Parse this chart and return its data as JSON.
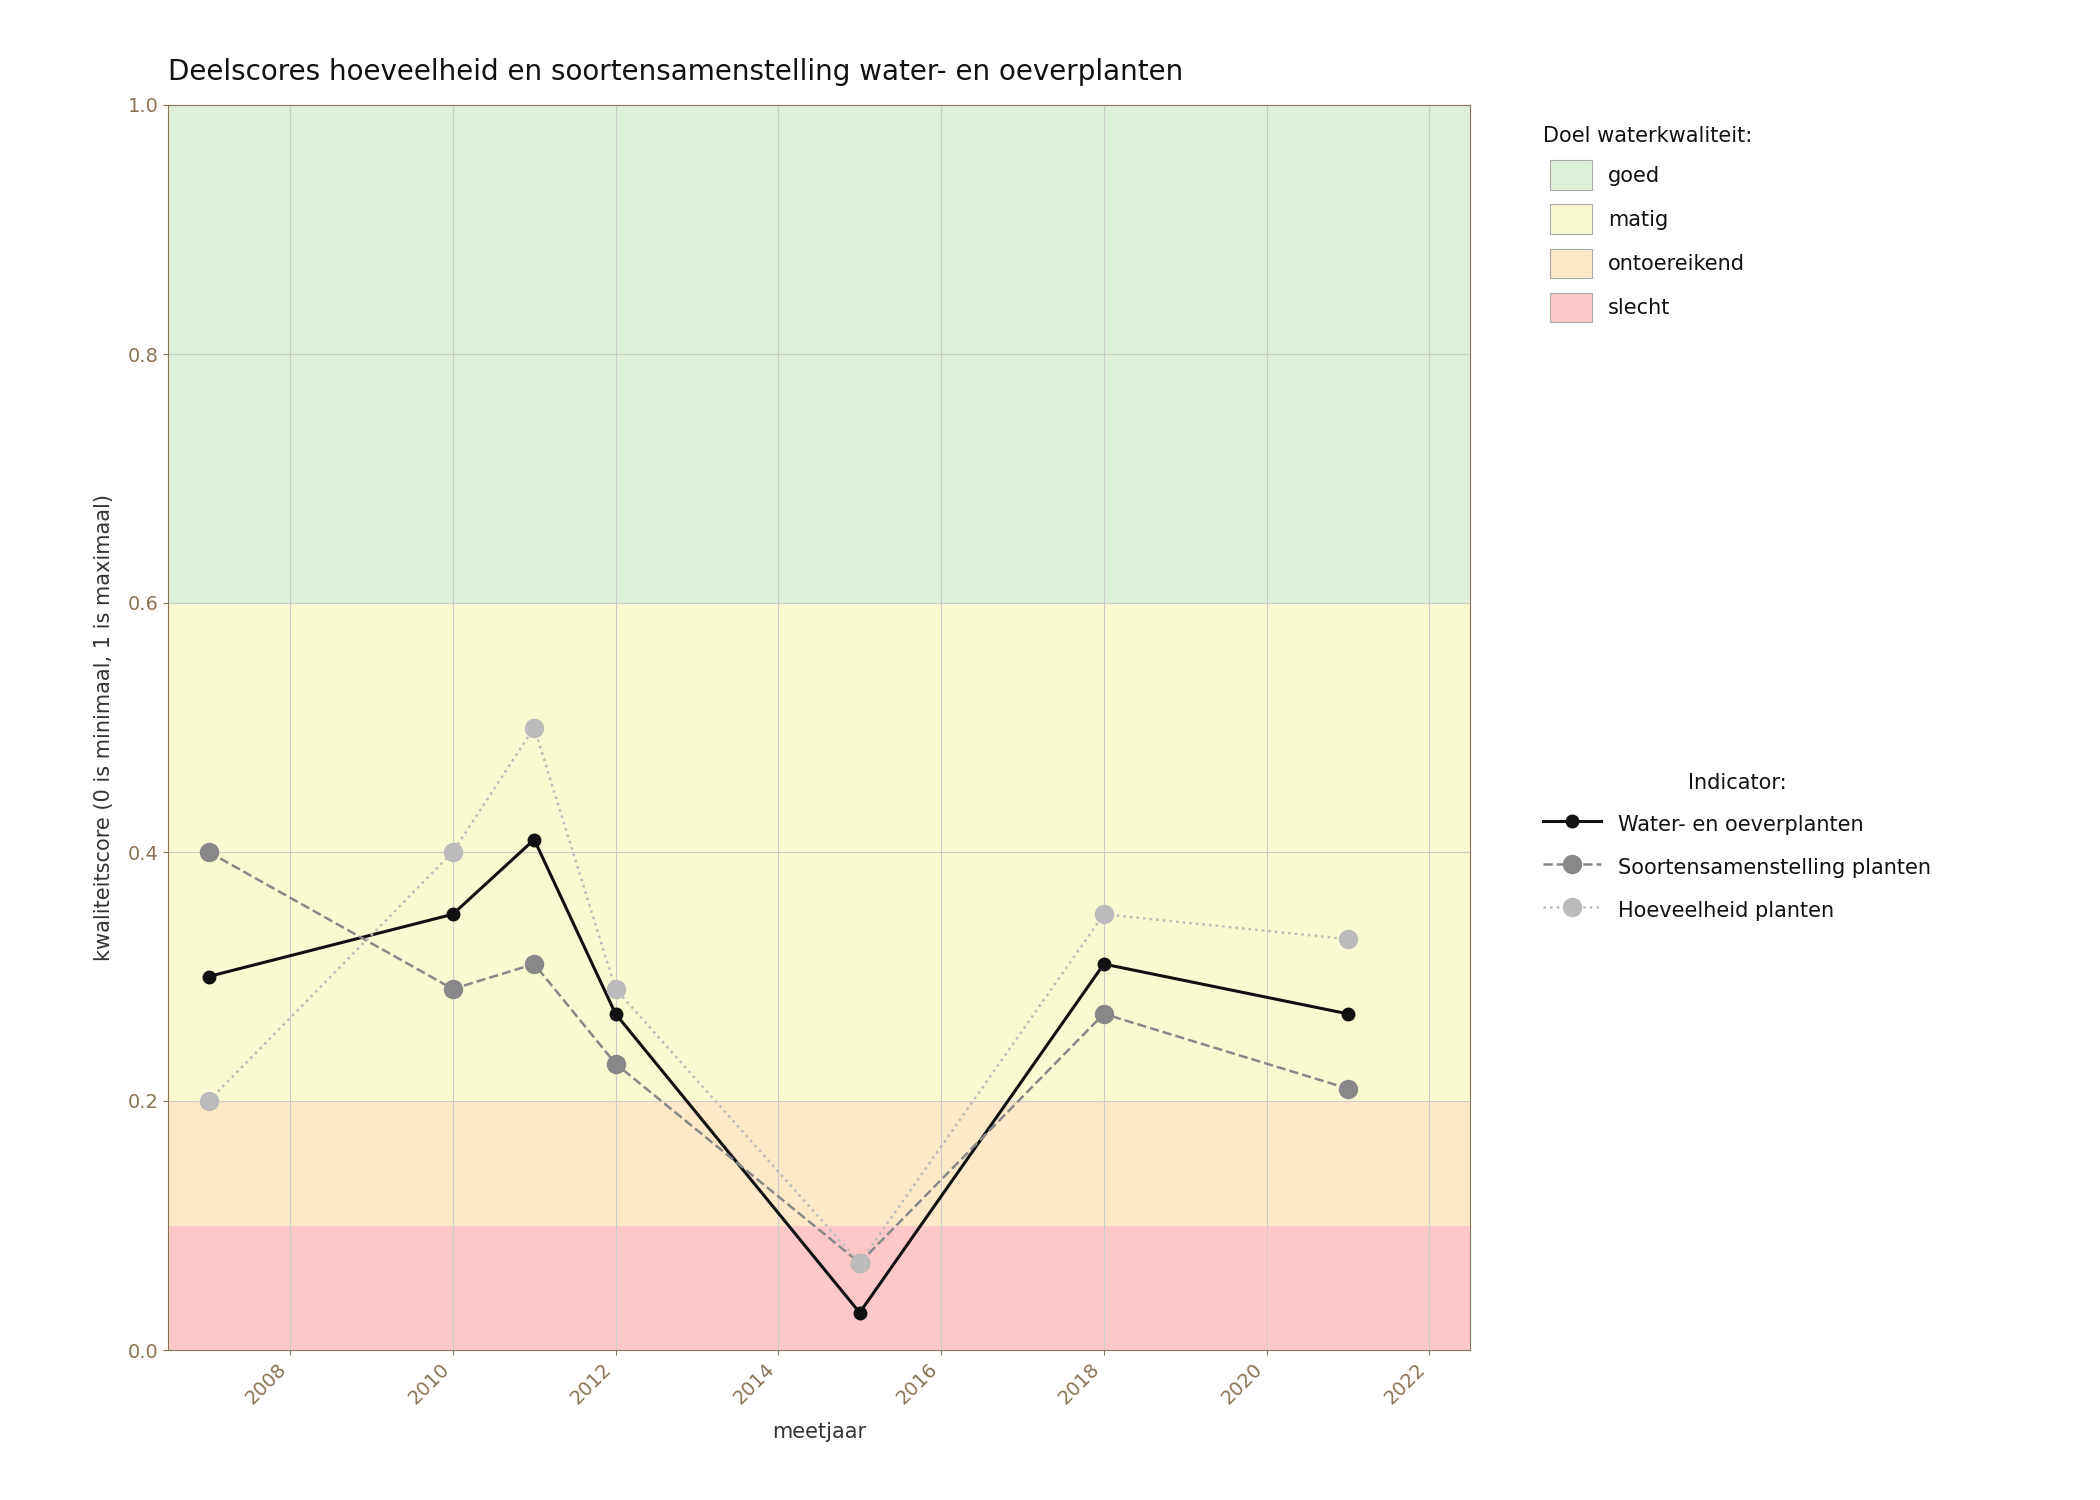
{
  "title": "Deelscores hoeveelheid en soortensamenstelling water- en oeverplanten",
  "xlabel": "meetjaar",
  "ylabel": "kwaliteitscore (0 is minimaal, 1 is maximaal)",
  "xlim": [
    2006.5,
    2022.5
  ],
  "ylim": [
    0.0,
    1.0
  ],
  "xticks": [
    2008,
    2010,
    2012,
    2014,
    2016,
    2018,
    2020,
    2022
  ],
  "yticks": [
    0.0,
    0.2,
    0.4,
    0.6,
    0.8,
    1.0
  ],
  "bg_colors": {
    "goed": {
      "ymin": 0.6,
      "ymax": 1.0,
      "color": "#dff0d8"
    },
    "matig": {
      "ymin": 0.2,
      "ymax": 0.6,
      "color": "#fafad2"
    },
    "ontoereikend": {
      "ymin": 0.1,
      "ymax": 0.2,
      "color": "#fde8c8"
    },
    "slecht": {
      "ymin": 0.0,
      "ymax": 0.1,
      "color": "#ffc8c8"
    }
  },
  "series": {
    "water_oever": {
      "label": "Water- en oeverplanten",
      "years": [
        2007,
        2010,
        2011,
        2012,
        2015,
        2018,
        2021
      ],
      "values": [
        0.3,
        0.35,
        0.41,
        0.27,
        0.03,
        0.31,
        0.27
      ],
      "color": "#111111",
      "linestyle": "solid",
      "linewidth": 2.2,
      "marker": "o",
      "markersize": 9,
      "markerfacecolor": "#111111",
      "markeredgecolor": "#111111"
    },
    "soortensamenstelling": {
      "label": "Soortensamenstelling planten",
      "years": [
        2007,
        2010,
        2011,
        2012,
        2015,
        2018,
        2021
      ],
      "values": [
        0.4,
        0.29,
        0.31,
        0.23,
        0.07,
        0.27,
        0.21
      ],
      "color": "#888888",
      "linestyle": "dashed",
      "linewidth": 1.8,
      "marker": "o",
      "markersize": 13,
      "markerfacecolor": "#888888",
      "markeredgecolor": "#888888"
    },
    "hoeveelheid": {
      "label": "Hoeveelheid planten",
      "years": [
        2007,
        2010,
        2011,
        2012,
        2015,
        2018,
        2021
      ],
      "values": [
        0.2,
        0.4,
        0.5,
        0.29,
        0.07,
        0.35,
        0.33
      ],
      "color": "#bbbbbb",
      "linestyle": "dotted",
      "linewidth": 1.8,
      "marker": "o",
      "markersize": 13,
      "markerfacecolor": "#bbbbbb",
      "markeredgecolor": "#bbbbbb"
    }
  },
  "legend_quality": {
    "title": "Doel waterkwaliteit:",
    "items": [
      {
        "label": "goed",
        "color": "#dff0d8"
      },
      {
        "label": "matig",
        "color": "#fafad2"
      },
      {
        "label": "ontoereikend",
        "color": "#fde8c8"
      },
      {
        "label": "slecht",
        "color": "#ffc8c8"
      }
    ]
  },
  "legend_indicator_title": "Indicator:",
  "background_color": "#ffffff",
  "grid_color": "#cccccc",
  "title_fontsize": 20,
  "axis_label_fontsize": 15,
  "tick_fontsize": 14,
  "legend_fontsize": 15
}
